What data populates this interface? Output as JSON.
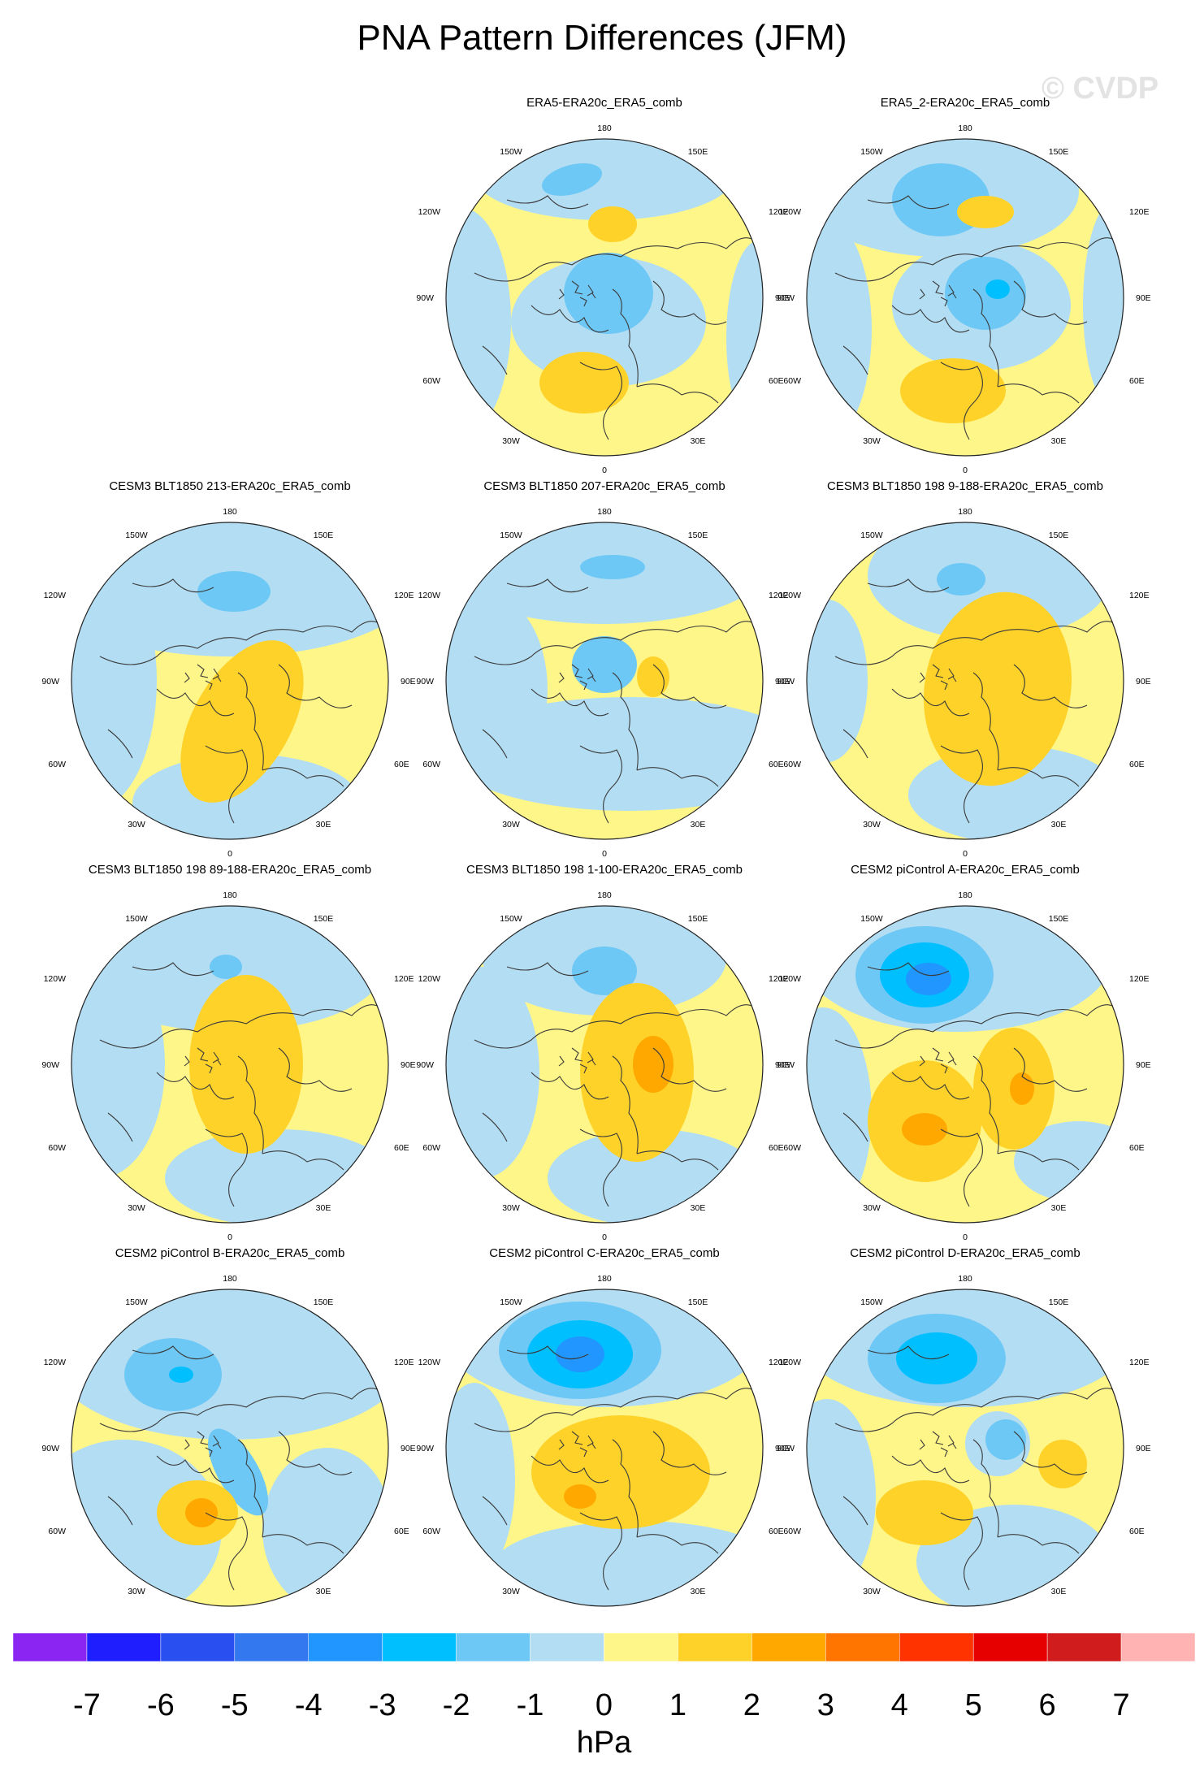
{
  "title": "PNA Pattern Differences (JFM)",
  "watermark": "© CVDP",
  "lon_labels": {
    "l180": "180",
    "l150w": "150W",
    "l150e": "150E",
    "l120w": "120W",
    "l120e": "120E",
    "l90w": "90W",
    "l90e": "90E",
    "l60w": "60W",
    "l60e": "60E",
    "l30w": "30W",
    "l30e": "30E",
    "l0": "0"
  },
  "panels": [
    {
      "title": "ERA5-ERA20c_ERA5_comb",
      "pattern": "era5"
    },
    {
      "title": "ERA5_2-ERA20c_ERA5_comb",
      "pattern": "era5_2"
    },
    {
      "title": "CESM3 BLT1850 213-ERA20c_ERA5_comb",
      "pattern": "c213"
    },
    {
      "title": "CESM3 BLT1850 207-ERA20c_ERA5_comb",
      "pattern": "c207"
    },
    {
      "title": "CESM3 BLT1850 198 9-188-ERA20c_ERA5_comb",
      "pattern": "c198a"
    },
    {
      "title": "CESM3 BLT1850 198 89-188-ERA20c_ERA5_comb",
      "pattern": "c198b"
    },
    {
      "title": "CESM3 BLT1850 198 1-100-ERA20c_ERA5_comb",
      "pattern": "c198c"
    },
    {
      "title": "CESM2 piControl A-ERA20c_ERA5_comb",
      "pattern": "pA"
    },
    {
      "title": "CESM2 piControl B-ERA20c_ERA5_comb",
      "pattern": "pB"
    },
    {
      "title": "CESM2 piControl C-ERA20c_ERA5_comb",
      "pattern": "pC"
    },
    {
      "title": "CESM2 piControl D-ERA20c_ERA5_comb",
      "pattern": "pD"
    }
  ],
  "colorbar": {
    "units": "hPa",
    "labels": [
      "-7",
      "-6",
      "-5",
      "-4",
      "-3",
      "-2",
      "-1",
      "0",
      "1",
      "2",
      "3",
      "4",
      "5",
      "6",
      "7"
    ],
    "colors": [
      "#8a25f2",
      "#1e1eff",
      "#2a4ff0",
      "#3478f0",
      "#2196ff",
      "#00bfff",
      "#6ec8f5",
      "#b3ddf2",
      "#fff68a",
      "#ffd22a",
      "#ffa800",
      "#ff7500",
      "#ff3300",
      "#e60000",
      "#d01c1c",
      "#ffb3b3"
    ]
  }
}
